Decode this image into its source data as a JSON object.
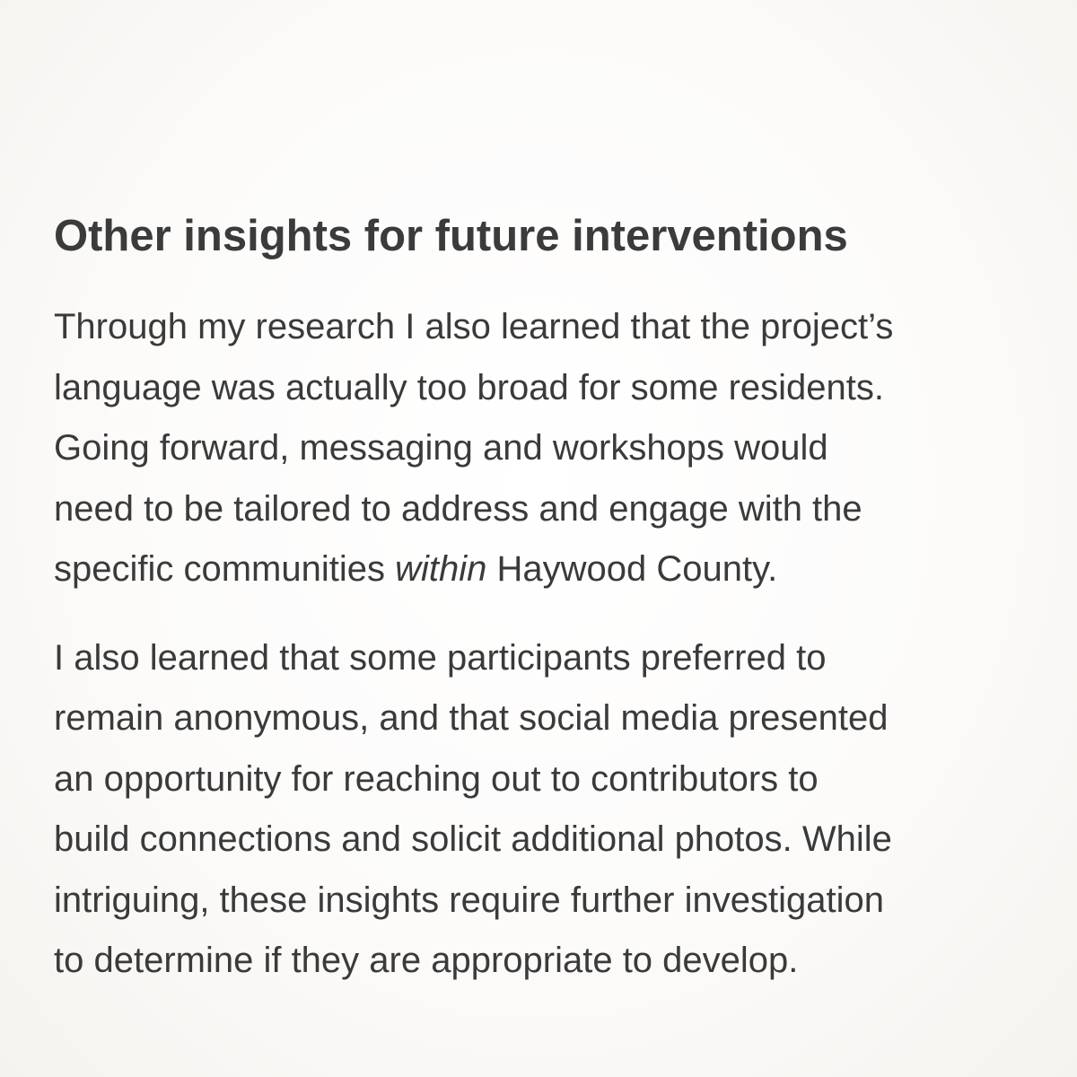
{
  "article": {
    "heading": "Other insights for future interventions",
    "paragraphs": [
      {
        "lines": [
          "Through my research I also learned that the project’s",
          "language was actually too broad for some residents.",
          "Going forward, messaging and workshops would",
          "need to be tailored to address and engage with the"
        ],
        "last_line": {
          "before": "specific communities ",
          "emphasis": "within",
          "after": " Haywood County."
        }
      },
      {
        "lines": [
          "I also learned that some participants preferred to",
          "remain anonymous, and that social media presented",
          "an opportunity for reaching out to contributors to",
          "build connections and solicit additional photos. While",
          "intriguing, these insights require further investigation",
          "to determine if they are appropriate to develop."
        ]
      }
    ]
  }
}
